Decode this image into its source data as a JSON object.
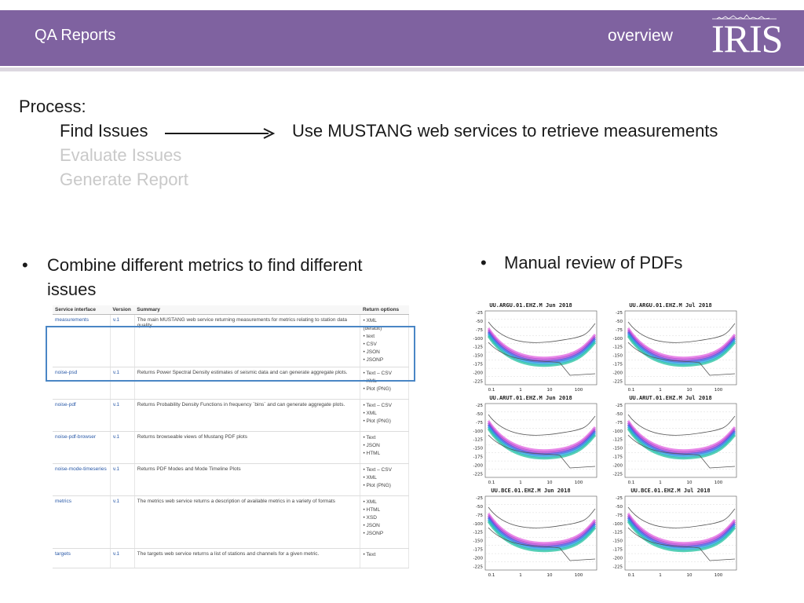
{
  "header": {
    "title": "QA Reports",
    "right_label": "overview",
    "logo_text": "IRIS",
    "bg_color": "#7f62a0"
  },
  "process": {
    "label": "Process:",
    "steps": [
      "Find Issues",
      "Evaluate Issues",
      "Generate Report"
    ],
    "description": "Use MUSTANG web services to retrieve measurements"
  },
  "bullets": {
    "left": "Combine different metrics to find different issues",
    "right": "Manual review of PDFs"
  },
  "table": {
    "headers": [
      "Service interface",
      "Version",
      "Summary",
      "Return options"
    ],
    "rows": [
      {
        "name": "measurements",
        "version": "v.1",
        "summary": "The main MUSTANG web service returning measurements for metrics relating to station data quality.",
        "options": [
          "• XML",
          "(default)",
          "• text",
          "• CSV",
          "• JSON",
          "• JSONP"
        ]
      },
      {
        "name": "noise-psd",
        "version": "v.1",
        "summary": "Returns Power Spectral Density estimates of seismic data and can generate aggregate plots.",
        "options": [
          "• Text – CSV",
          "• XML",
          "• Plot (PNG)"
        ]
      },
      {
        "name": "noise-pdf",
        "version": "v.1",
        "summary": "Returns Probability Density Functions in frequency `bins` and can generate aggregate plots.",
        "options": [
          "• Text – CSV",
          "• XML",
          "• Plot (PNG)"
        ]
      },
      {
        "name": "noise-pdf-browser",
        "version": "v.1",
        "summary": "Returns browseable views of Mustang PDF plots",
        "options": [
          "• Text",
          "• JSON",
          "• HTML"
        ]
      },
      {
        "name": "noise-mode-timeseries",
        "version": "v.1",
        "summary": "Returns PDF Modes and Mode Timeline Plots",
        "options": [
          "• Text – CSV",
          "• XML",
          "• Plot (PNG)"
        ]
      },
      {
        "name": "metrics",
        "version": "v.1",
        "summary": "The metrics web service returns a description of available metrics in a variety of formats",
        "options": [
          "• XML",
          "• HTML",
          "• XSD",
          "• JSON",
          "• JSONP"
        ]
      },
      {
        "name": "targets",
        "version": "v.1",
        "summary": "The targets web service returns a list of stations and channels for a given metric.",
        "options": [
          "• Text"
        ]
      }
    ]
  },
  "plots": {
    "titles": [
      "UU.ARGU.01.EHZ.M Jun 2018",
      "UU.ARGU.01.EHZ.M Jul 2018",
      "UU.ARUT.01.EHZ.M Jun 2018",
      "UU.ARUT.01.EHZ.M Jul 2018",
      "UU.BCE.01.EHZ.M Jun 2018",
      "UU.BCE.01.EHZ.M Jul 2018"
    ],
    "y_ticks": [
      "-25",
      "-50",
      "-75",
      "-100",
      "-125",
      "-150",
      "-175",
      "-200",
      "-225"
    ],
    "x_ticks": [
      "0.1",
      "1",
      "10",
      "100"
    ]
  }
}
